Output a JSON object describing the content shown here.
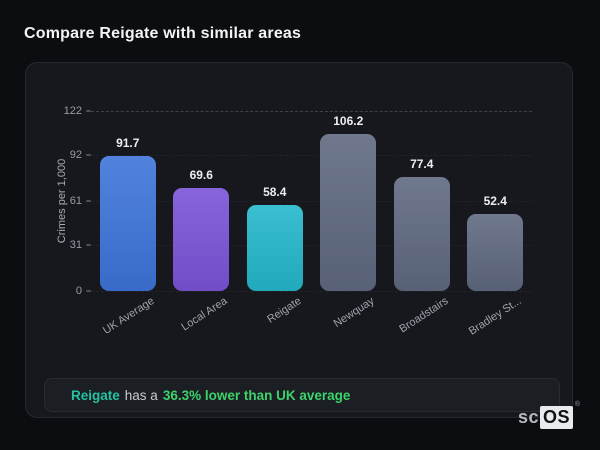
{
  "header": {
    "title": "Compare Reigate with similar areas"
  },
  "chart_data": {
    "type": "bar",
    "title": "",
    "xlabel": "",
    "ylabel": "Crimes per 1,000",
    "ylim": [
      0,
      122
    ],
    "yticks": [
      122,
      92,
      61,
      31,
      0
    ],
    "grid": "horizontal dashed at each y tick, strongest at 122",
    "legend": "none",
    "categories": [
      "UK Average",
      "Local Area",
      "Reigate",
      "Newquay",
      "Broadstairs",
      "Bradley St..."
    ],
    "values": [
      91.7,
      69.6,
      58.4,
      106.2,
      77.4,
      52.4
    ],
    "bar_colors": [
      "#3d74da",
      "#7b53d8",
      "#24b7cc",
      "#5f6980",
      "#5f6980",
      "#5f6980"
    ]
  },
  "note": {
    "area_name": "Reigate",
    "connector": "has a",
    "stat_text": "36.3% lower than UK average"
  },
  "logo": {
    "prefix": "sc",
    "suffix": "OS",
    "registered": "®"
  },
  "colors": {
    "page_bg": "#0c0d11",
    "card_bg": "#16181d",
    "note_bg": "#1b1e23",
    "accent_teal": "#23c3a4",
    "accent_green": "#3dd36c",
    "bar_blue": "#3d74da",
    "bar_purple": "#7b53d8",
    "bar_teal": "#24b7cc",
    "bar_gray": "#5f6980"
  }
}
